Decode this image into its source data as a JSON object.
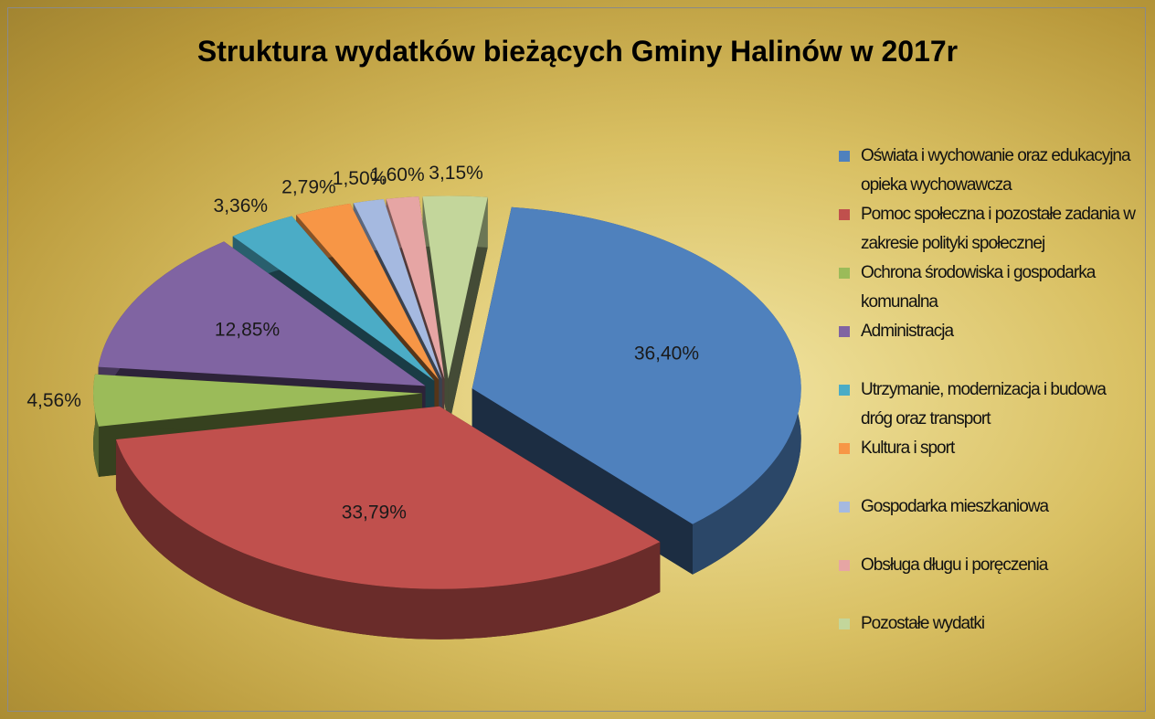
{
  "chart_data": {
    "type": "pie",
    "title": "Struktura wydatków bieżących Gminy Halinów w 2017r",
    "categories": [
      "Oświata i wychowanie oraz edukacyjna opieka wychowawcza",
      "Pomoc społeczna i pozostałe zadania w zakresie polityki społecznej",
      "Ochrona środowiska i gospodarka komunalna",
      "Administracja",
      "Utrzymanie, modernizacja i budowa dróg oraz transport",
      "Kultura i sport",
      "Gospodarka mieszkaniowa",
      "Obsługa długu i poręczenia",
      "Pozostałe wydatki"
    ],
    "values": [
      36.4,
      33.79,
      4.56,
      12.85,
      3.36,
      2.79,
      1.5,
      1.6,
      3.15
    ],
    "value_labels": [
      "36,40%",
      "33,79%",
      "4,56%",
      "12,85%",
      "3,36%",
      "2,79%",
      "1,50%",
      "1,60%",
      "3,15%"
    ],
    "colors": [
      "#4f81bd",
      "#c0504d",
      "#9bbb59",
      "#8064a2",
      "#4bacc6",
      "#f79646",
      "#a5b9e0",
      "#e6a5a4",
      "#c3d69b"
    ],
    "legend": "right"
  }
}
